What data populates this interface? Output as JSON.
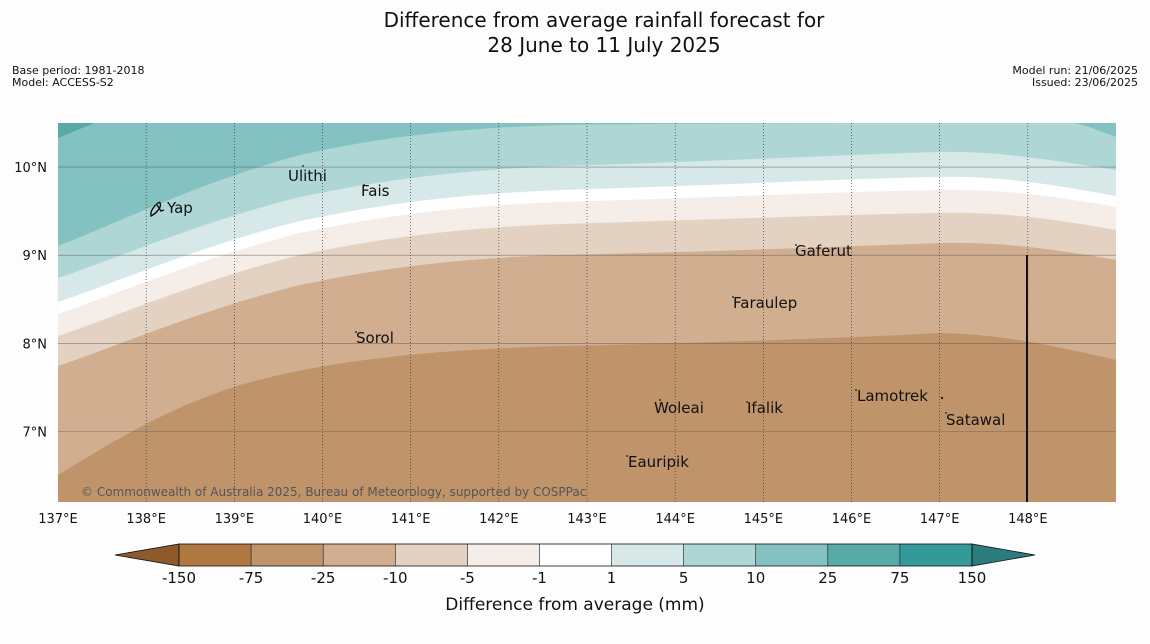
{
  "title": {
    "line1": "Difference from average rainfall forecast for",
    "line2": "28 June to 11 July 2025"
  },
  "meta_left": {
    "base_period": "Base period: 1981-2018",
    "model": "Model: ACCESS-S2"
  },
  "meta_right": {
    "model_run": "Model run: 21/06/2025",
    "issued": "Issued: 23/06/2025"
  },
  "map": {
    "lon_range": [
      137.0,
      149.0
    ],
    "lat_range": [
      6.2,
      10.5
    ],
    "lon_labels": [
      "137°E",
      "138°E",
      "139°E",
      "140°E",
      "141°E",
      "142°E",
      "143°E",
      "144°E",
      "145°E",
      "146°E",
      "147°E",
      "148°E"
    ],
    "lat_labels": [
      "10°N",
      "9°N",
      "8°N",
      "7°N"
    ],
    "places": [
      "Ulithi",
      "Fais",
      "Yap",
      "Gaferut",
      "Faraulep",
      "Sorol",
      "Woleai",
      "Ifalik",
      "Lamotrek",
      "Satawal",
      "Eauripik"
    ],
    "copyright": "© Commonwealth of Australia 2025, Bureau of Meteorology, supported by COSPPac"
  },
  "legend": {
    "title": "Difference from average (mm)",
    "ticks": [
      "-150",
      "-75",
      "-25",
      "-10",
      "-5",
      "-1",
      "1",
      "5",
      "10",
      "25",
      "75",
      "150"
    ],
    "colors": [
      "#8f5a2b",
      "#b07841",
      "#bf946a",
      "#d1ae8f",
      "#e3d2c2",
      "#f4ede8",
      "#ffffff",
      "#d6e8e7",
      "#add6d5",
      "#84c2c1",
      "#5aa9a9",
      "#349a99",
      "#2b7c7c"
    ]
  }
}
